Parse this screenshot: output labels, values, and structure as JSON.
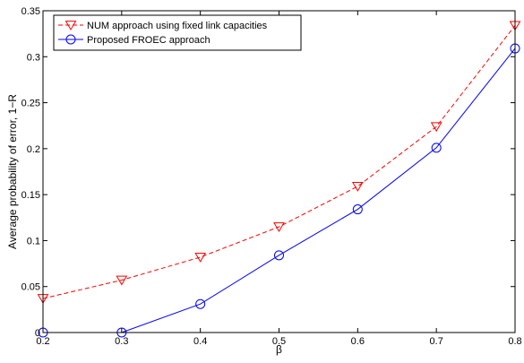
{
  "chart_data": {
    "type": "line",
    "xlabel": "β",
    "ylabel": "Average probability of error, 1−R",
    "xlim": [
      0.2,
      0.8
    ],
    "ylim": [
      0,
      0.35
    ],
    "x_ticks": [
      "0.2",
      "0.3",
      "0.4",
      "0.5",
      "0.6",
      "0.7",
      "0.8"
    ],
    "y_ticks": [
      "0",
      "0.05",
      "0.1",
      "0.15",
      "0.2",
      "0.25",
      "0.3",
      "0.35"
    ],
    "grid": false,
    "legend_position": "top-left",
    "x": [
      0.2,
      0.3,
      0.4,
      0.5,
      0.6,
      0.7,
      0.8
    ],
    "series": [
      {
        "name": "NUM approach using fixed link capacities",
        "values": [
          0.037,
          0.057,
          0.082,
          0.115,
          0.159,
          0.224,
          0.334
        ],
        "color": "#ff0000",
        "line_style": "dashed",
        "marker": "triangle-down"
      },
      {
        "name": "Proposed FROEC approach",
        "values": [
          0.0,
          0.0,
          0.031,
          0.084,
          0.134,
          0.201,
          0.309
        ],
        "color": "#0000ff",
        "line_style": "solid",
        "marker": "circle"
      }
    ]
  }
}
